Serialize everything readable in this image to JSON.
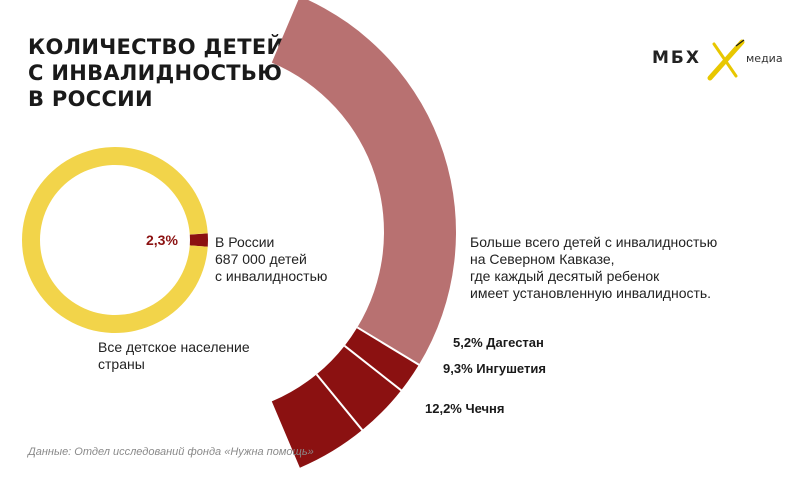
{
  "title_lines": [
    "КОЛИЧЕСТВО ДЕТЕЙ",
    "С ИНВАЛИДНОСТЬЮ",
    "В РОССИИ"
  ],
  "logo": {
    "text": "МБХ",
    "sub": "медиа"
  },
  "colors": {
    "yellow": "#f2d44a",
    "dark_red": "#8b1111",
    "rose": "#b87171",
    "separator": "#ffffff"
  },
  "chart_data": [
    {
      "type": "pie",
      "style": "donut",
      "slices": [
        {
          "label": "Все детское население страны",
          "value": 97.7
        },
        {
          "label": "В России 687 000 детей с инвалидностью",
          "value": 2.3
        }
      ],
      "value_label": "2,3%",
      "russia_label_lines": [
        "В России",
        "687 000 детей",
        "с инвалидностью"
      ],
      "population_label_lines": [
        "Все детское население",
        "страны"
      ]
    },
    {
      "type": "bar",
      "style": "stacked-arc",
      "description_lines": [
        "Больше всего детей с инвалидностью",
        "на Северном Кавказе,",
        "где каждый десятый ребенок",
        "имеет установленную инвалидность."
      ],
      "segments": [
        {
          "label": "5,2% Дагестан",
          "name": "Дагестан",
          "value": 5.2
        },
        {
          "label": "9,3% Ингушетия",
          "name": "Ингушетия",
          "value": 9.3
        },
        {
          "label": "12,2% Чечня",
          "name": "Чечня",
          "value": 12.2
        }
      ]
    }
  ],
  "source": "Данные: Отдел исследований фонда «Нужна помощь»"
}
